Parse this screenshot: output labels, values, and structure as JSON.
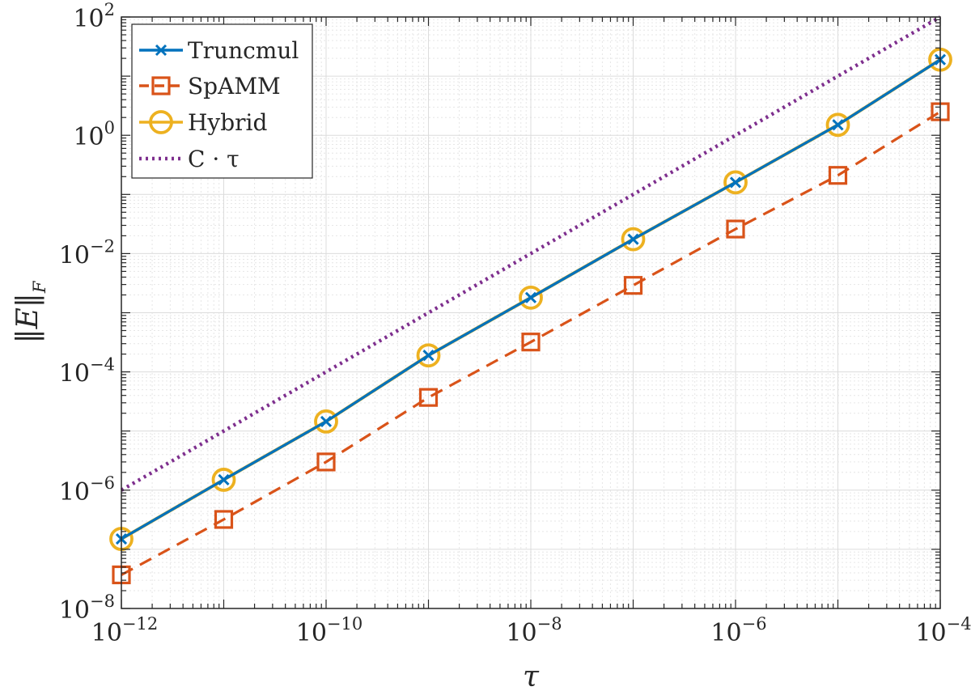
{
  "chart_data": {
    "type": "line",
    "scale": {
      "x": "log",
      "y": "log"
    },
    "xlim": [
      1e-12,
      0.0001
    ],
    "ylim": [
      1e-08,
      100.0
    ],
    "xlabel": "τ",
    "ylabel": "‖E‖F",
    "grid": true,
    "minor_grid": true,
    "legend_position": "top-left",
    "x_tick_base": "10",
    "x_tick_exponents": [
      "−12",
      "−10",
      "−8",
      "−6",
      "−4"
    ],
    "x_tick_values": [
      1e-12,
      1e-10,
      1e-08,
      1e-06,
      0.0001
    ],
    "y_tick_base": "10",
    "y_tick_exponents": [
      "−8",
      "−6",
      "−4",
      "−2",
      "0",
      "2"
    ],
    "y_tick_values": [
      1e-08,
      1e-06,
      0.0001,
      0.01,
      1,
      100
    ],
    "x": [
      1e-12,
      1e-11,
      1e-10,
      1e-09,
      1e-08,
      1e-07,
      1e-06,
      1e-05,
      0.0001
    ],
    "series": [
      {
        "name": "Truncmul",
        "marker": "x",
        "line_style": "solid",
        "color": "#0072BD",
        "values": [
          1.5e-07,
          1.5e-06,
          1.45e-05,
          0.00019,
          0.0018,
          0.0175,
          0.16,
          1.5,
          19
        ]
      },
      {
        "name": "SpAMM",
        "marker": "square",
        "line_style": "dashed",
        "color": "#D95319",
        "values": [
          3.7e-08,
          3.2e-07,
          3e-06,
          3.7e-05,
          0.00032,
          0.0029,
          0.026,
          0.21,
          2.5
        ]
      },
      {
        "name": "Hybrid",
        "marker": "circle",
        "line_style": "solid",
        "color": "#EDB120",
        "values": [
          1.5e-07,
          1.5e-06,
          1.45e-05,
          0.00019,
          0.0018,
          0.0175,
          0.16,
          1.5,
          19
        ]
      },
      {
        "name": "C · τ",
        "marker": "none",
        "line_style": "dotted",
        "color": "#7E2F8E",
        "x": [
          1e-12,
          0.0001
        ],
        "values": [
          1e-06,
          100
        ]
      }
    ]
  }
}
